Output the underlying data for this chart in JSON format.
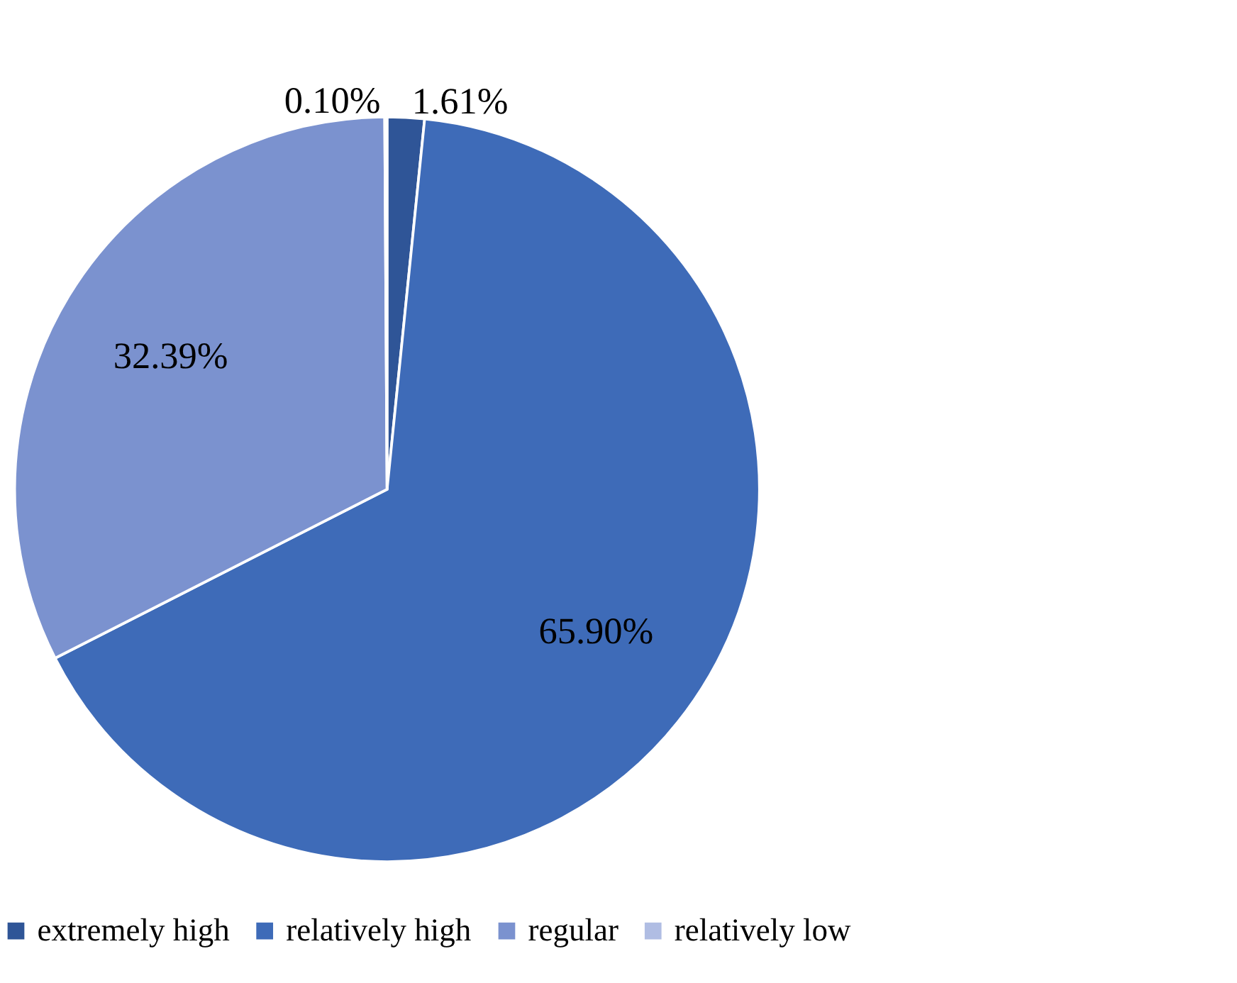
{
  "chart_data": {
    "type": "pie",
    "categories": [
      "extremely high",
      "relatively high",
      "regular",
      "relatively low"
    ],
    "values": [
      1.61,
      65.9,
      32.39,
      0.1
    ],
    "colors": [
      "#2f5597",
      "#3e6bb8",
      "#7b92cf",
      "#b0bde3"
    ],
    "value_labels": [
      "1.61%",
      "65.90%",
      "32.39%",
      "0.10%"
    ],
    "legend": "bottom"
  }
}
